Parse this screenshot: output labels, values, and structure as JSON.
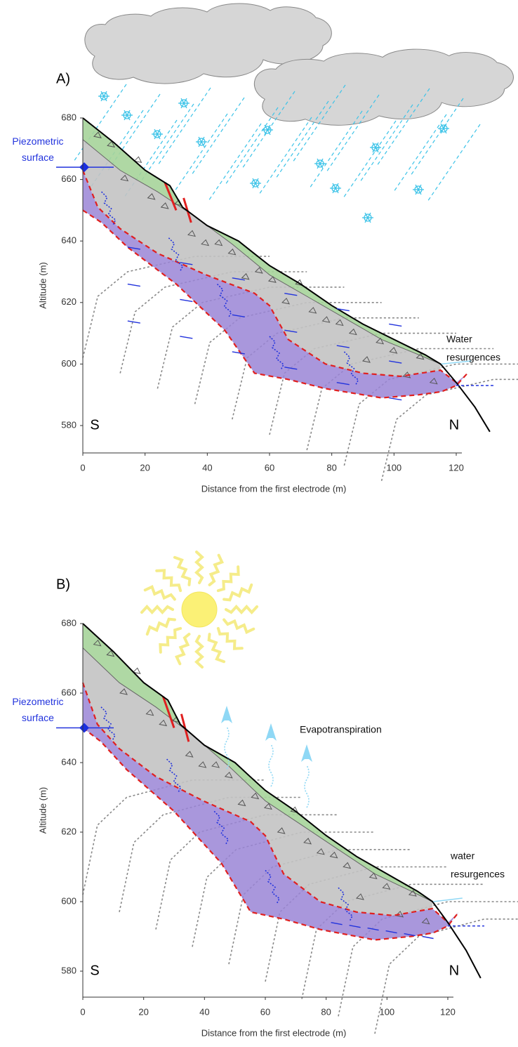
{
  "panels": [
    {
      "label": "A)",
      "piezometric_label": [
        "Piezometric",
        "surface"
      ],
      "resurgence_label": [
        "Water",
        "resurgences"
      ],
      "south": "S",
      "north": "N",
      "y_axis_title": "Altitude (m)",
      "x_axis_title": "Distance from the first electrode (m)",
      "yticks": [
        580,
        600,
        620,
        640,
        660,
        680
      ],
      "xticks": [
        0,
        20,
        40,
        60,
        80,
        100,
        120
      ]
    },
    {
      "label": "B)",
      "annotation": "Evapotranspiration",
      "piezometric_label": [
        "Piezometric",
        "surface"
      ],
      "resurgence_label": [
        "water",
        "resurgences"
      ],
      "south": "S",
      "north": "N",
      "y_axis_title": "Altitude (m)",
      "x_axis_title": "Distance from the first electrode (m)",
      "yticks": [
        580,
        600,
        620,
        640,
        660,
        680
      ],
      "xticks": [
        0,
        20,
        40,
        60,
        80,
        100,
        120
      ]
    }
  ]
}
